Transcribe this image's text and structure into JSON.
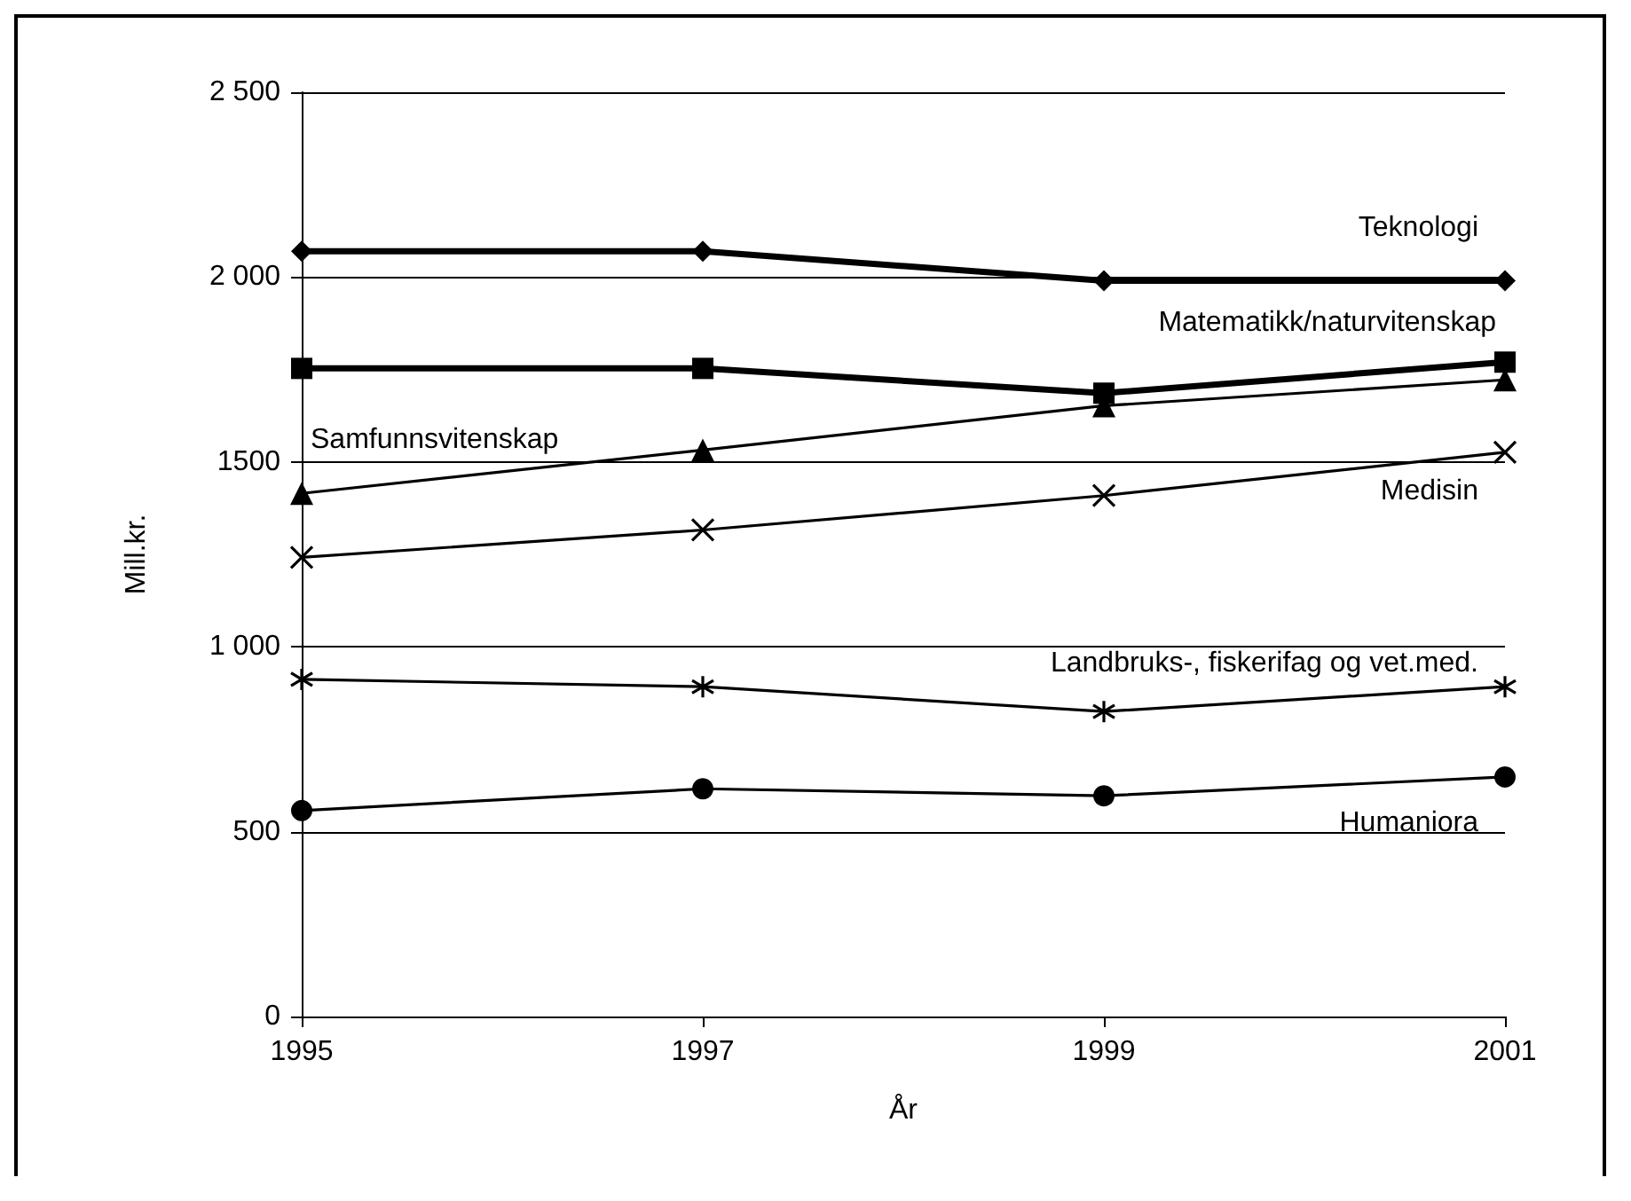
{
  "chart_data": {
    "type": "line",
    "xlabel": "År",
    "ylabel": "Mill.kr.",
    "x": [
      1995,
      1997,
      1999,
      2001
    ],
    "xlim": [
      1995,
      2001
    ],
    "xticks": [
      1995,
      1997,
      1999,
      2001
    ],
    "ylim": [
      0,
      2500
    ],
    "yticks": [
      0,
      500,
      {
        "value": 1000,
        "label": "1 000"
      },
      1500,
      {
        "value": 2000,
        "label": "2 000"
      },
      {
        "value": 2500,
        "label": "2 500"
      }
    ],
    "grid": "y",
    "legend": false,
    "line_style": "solid",
    "series": [
      {
        "name": "Teknologi",
        "color": "#000000",
        "marker": "diamond",
        "values": [
          2070,
          2070,
          1990,
          1990
        ]
      },
      {
        "name": "Matematikk/naturvitenskap",
        "color": "#000000",
        "marker": "square",
        "values": [
          1753,
          1753,
          1686,
          1770
        ]
      },
      {
        "name": "Samfunnsvitenskap",
        "color": "#000000",
        "marker": "triangle",
        "values": [
          1415,
          1532,
          1652,
          1722
        ]
      },
      {
        "name": "Medisin",
        "color": "#000000",
        "marker": "cross",
        "values": [
          1242,
          1316,
          1409,
          1526
        ]
      },
      {
        "name": "Landbruks-, fiskerifag og vet.med.",
        "color": "#000000",
        "marker": "cross",
        "values": [
          912,
          892,
          825,
          892
        ]
      },
      {
        "name": "Humaniora",
        "color": "#000000",
        "marker": "circle",
        "values": [
          557,
          616,
          597,
          648
        ]
      }
    ]
  }
}
